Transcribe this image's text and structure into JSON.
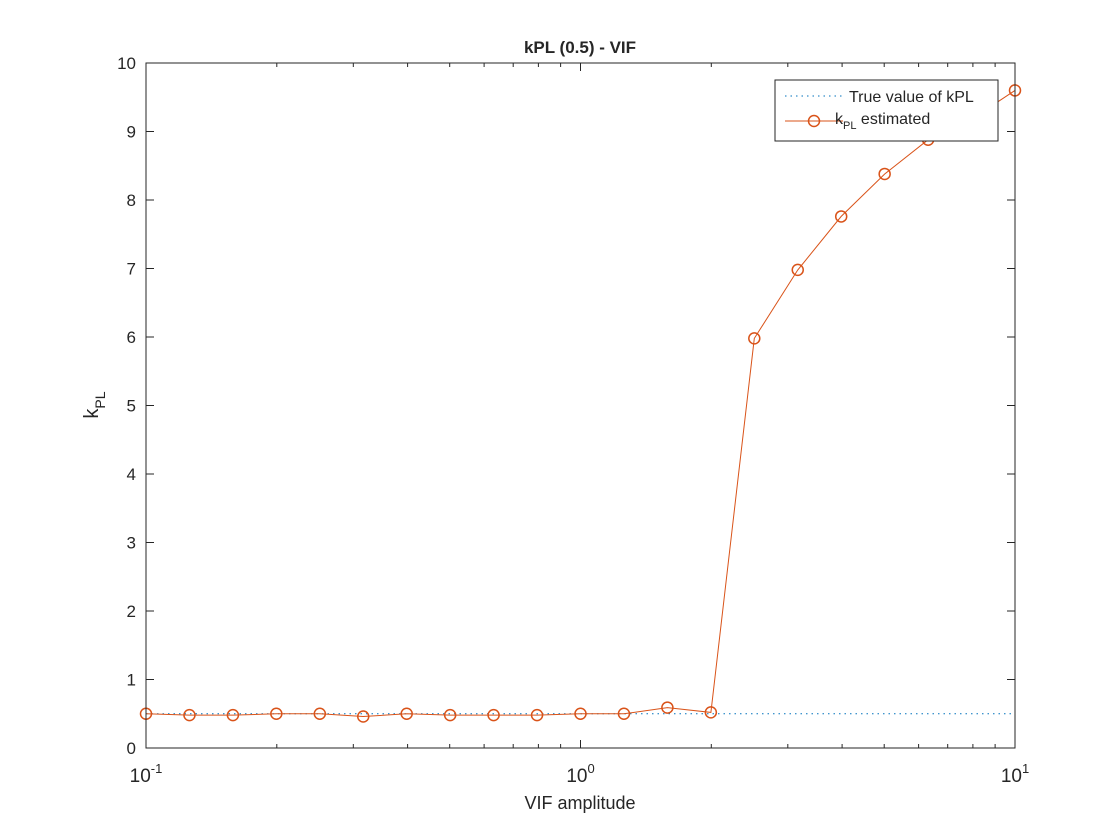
{
  "chart_data": {
    "type": "line",
    "title": "kPL (0.5) - VIF",
    "xlabel": "VIF amplitude",
    "ylabel": "k",
    "ylabel_sub": "PL",
    "xscale": "log",
    "xlim": [
      0.1,
      10
    ],
    "ylim": [
      0,
      10
    ],
    "x_ticks": [
      {
        "value": 0.1,
        "base": "10",
        "exp": "-1"
      },
      {
        "value": 1,
        "base": "10",
        "exp": "0"
      },
      {
        "value": 10,
        "base": "10",
        "exp": "1"
      }
    ],
    "y_ticks": [
      0,
      1,
      2,
      3,
      4,
      5,
      6,
      7,
      8,
      9,
      10
    ],
    "grid": false,
    "legend_position": "top-right",
    "series": [
      {
        "name": "True value of kPL",
        "style": "dotted",
        "color": "#0072BD",
        "x": [
          0.1,
          10
        ],
        "y": [
          0.5,
          0.5
        ]
      },
      {
        "name": "k",
        "name_sub": "PL",
        "name_suffix": " estimated",
        "style": "line-circle",
        "color": "#D95319",
        "x": [
          0.1,
          0.1259,
          0.1585,
          0.1995,
          0.2512,
          0.3162,
          0.3981,
          0.5012,
          0.631,
          0.7943,
          1.0,
          1.2589,
          1.5849,
          1.9953,
          2.5119,
          3.1623,
          3.9811,
          5.0119,
          6.3096,
          7.9433,
          10.0
        ],
        "y": [
          0.5,
          0.48,
          0.48,
          0.5,
          0.5,
          0.46,
          0.5,
          0.48,
          0.48,
          0.48,
          0.5,
          0.5,
          0.59,
          0.52,
          5.98,
          6.98,
          7.76,
          8.38,
          8.88,
          9.18,
          9.6
        ]
      }
    ]
  }
}
